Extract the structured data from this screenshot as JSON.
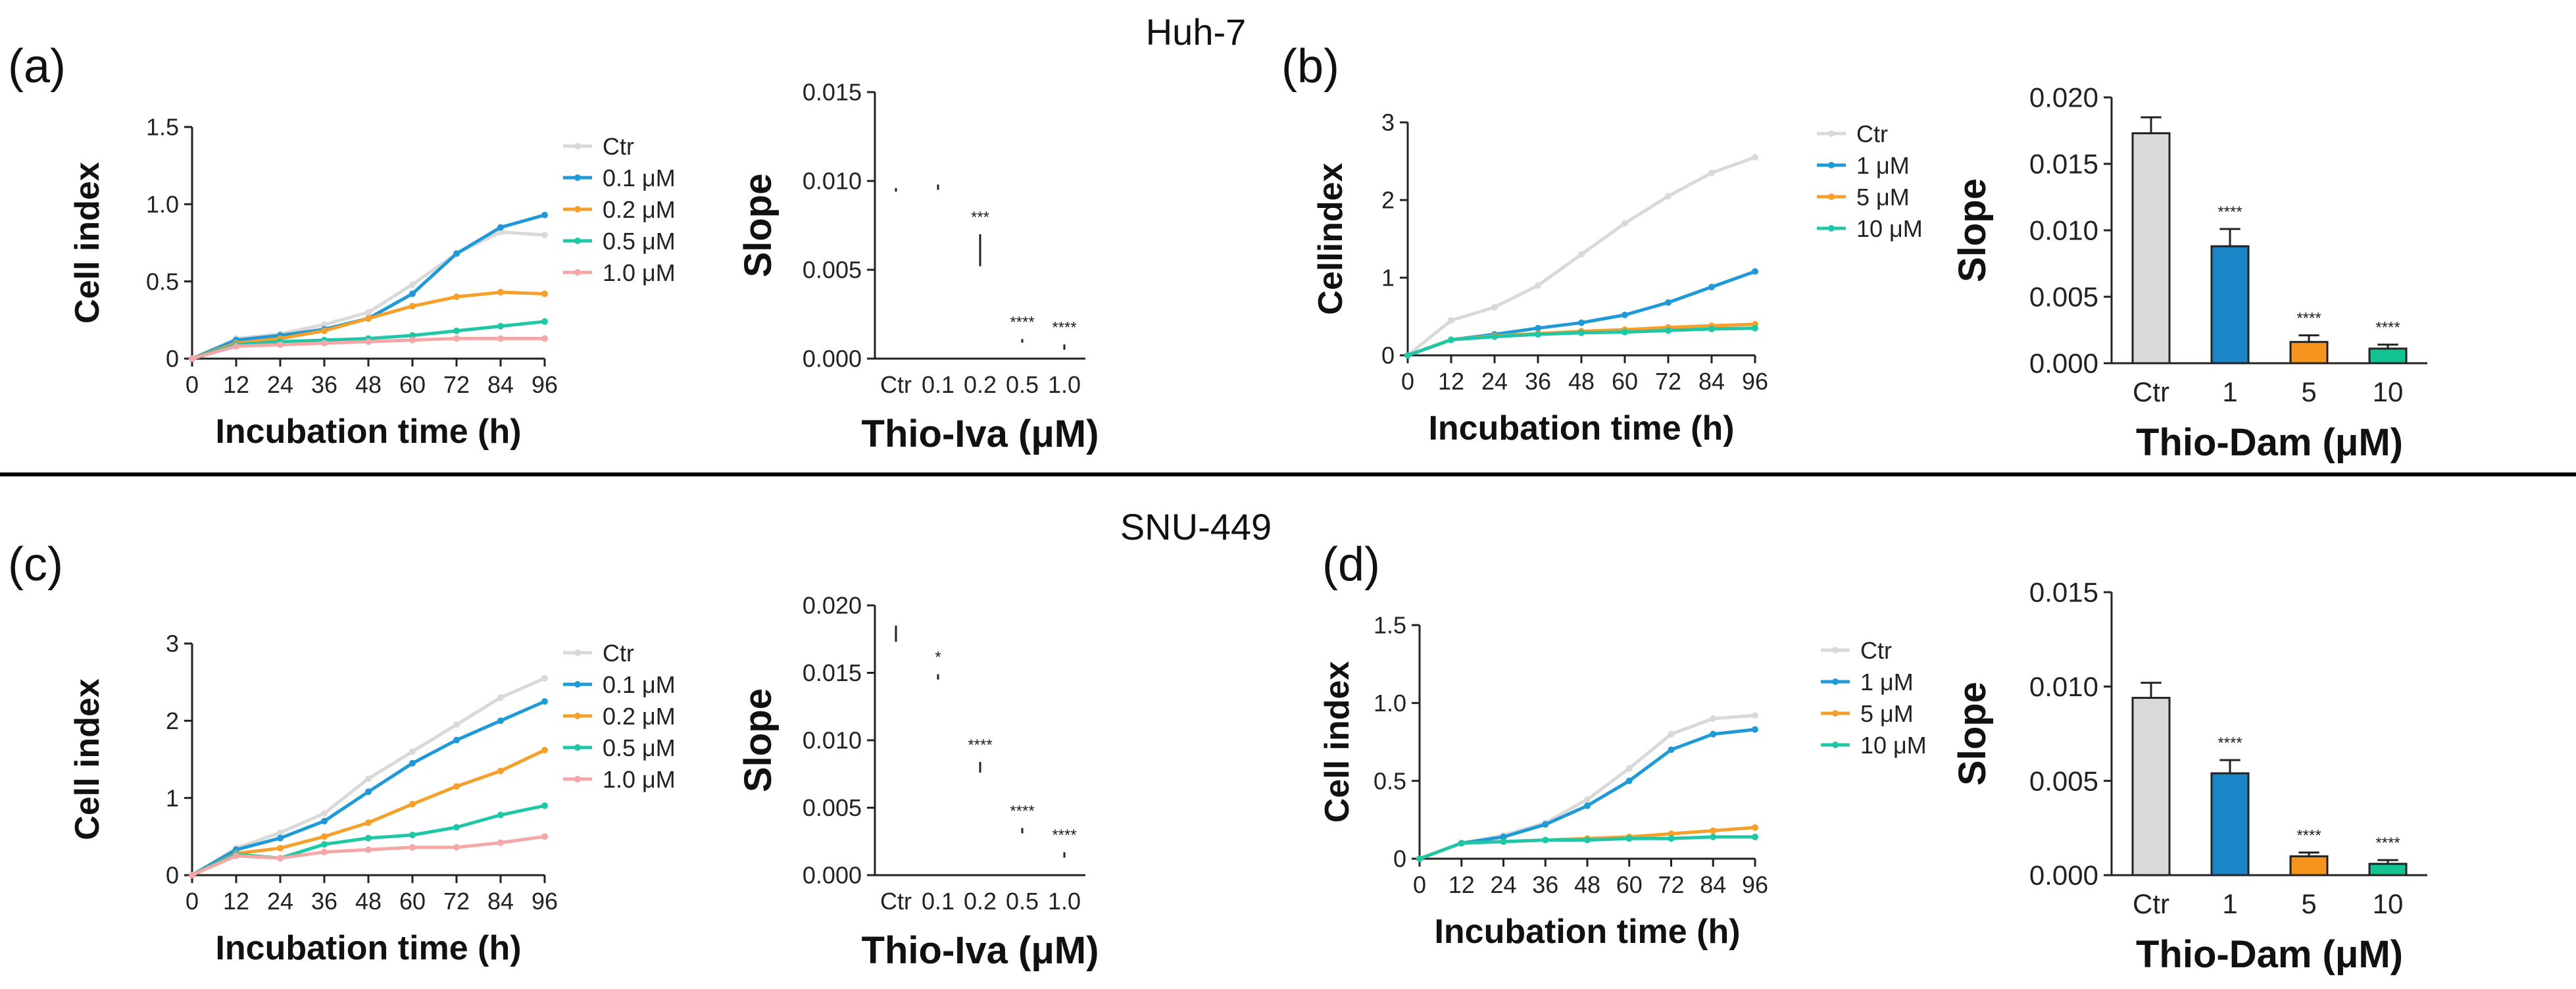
{
  "figure": {
    "title_top": "Huh-7",
    "title_bottom": "SNU-449",
    "panel_labels": [
      "(a)",
      "(b)",
      "(c)",
      "(d)"
    ]
  },
  "chart_data": [
    {
      "id": "a-line",
      "type": "line",
      "panel": "(a)",
      "xlabel": "Incubation time (h)",
      "ylabel": "Cell index",
      "xlim": [
        0,
        96
      ],
      "ylim": [
        0,
        1.5
      ],
      "xticks": [
        0,
        12,
        24,
        36,
        48,
        60,
        72,
        84,
        96
      ],
      "yticks": [
        0,
        0.5,
        1.0,
        1.5
      ],
      "ytick_labels": [
        "0",
        "0.5",
        "1.0",
        "1.5"
      ],
      "x": [
        0,
        12,
        24,
        36,
        48,
        60,
        72,
        84,
        96
      ],
      "series": [
        {
          "name": "Ctr",
          "color": "#d9d9d9",
          "values": [
            0,
            0.13,
            0.16,
            0.22,
            0.3,
            0.48,
            0.68,
            0.82,
            0.8
          ]
        },
        {
          "name": "0.1 μM",
          "color": "#1f9ad6",
          "values": [
            0,
            0.12,
            0.15,
            0.19,
            0.26,
            0.42,
            0.68,
            0.85,
            0.93
          ]
        },
        {
          "name": "0.2 μM",
          "color": "#f5a02a",
          "values": [
            0,
            0.1,
            0.13,
            0.18,
            0.26,
            0.34,
            0.4,
            0.43,
            0.42
          ]
        },
        {
          "name": "0.5 μM",
          "color": "#1fc7a6",
          "values": [
            0,
            0.09,
            0.11,
            0.12,
            0.13,
            0.15,
            0.18,
            0.21,
            0.24
          ]
        },
        {
          "name": "1.0 μM",
          "color": "#f5a6a6",
          "values": [
            0,
            0.08,
            0.09,
            0.1,
            0.11,
            0.12,
            0.13,
            0.13,
            0.13
          ]
        }
      ]
    },
    {
      "id": "a-bar",
      "type": "bar",
      "panel": "(a)",
      "xlabel": "Thio-Iva (μM)",
      "ylabel": "Slope",
      "ylim": [
        0,
        0.015
      ],
      "yticks": [
        0,
        0.005,
        0.01,
        0.015
      ],
      "ytick_labels": [
        "0.000",
        "0.005",
        "0.010",
        "0.015"
      ],
      "categories": [
        "Ctr",
        "0.1",
        "0.2",
        "0.5",
        "1.0"
      ],
      "values": [
        0.0094,
        0.0095,
        0.0052,
        0.0009,
        0.0005
      ],
      "errors": [
        0.0002,
        0.0003,
        0.0018,
        0.0002,
        0.0003
      ],
      "colors": [
        "#d9d9d9",
        "#1a86c8",
        "#f7941d",
        "#14c392",
        "#f0938f"
      ],
      "significance": [
        "",
        "",
        "***",
        "****",
        "****"
      ]
    },
    {
      "id": "b-line",
      "type": "line",
      "panel": "(b)",
      "xlabel": "Incubation time (h)",
      "ylabel": "Cellindex",
      "xlim": [
        0,
        96
      ],
      "ylim": [
        0,
        3
      ],
      "xticks": [
        0,
        12,
        24,
        36,
        48,
        60,
        72,
        84,
        96
      ],
      "yticks": [
        0,
        1,
        2,
        3
      ],
      "ytick_labels": [
        "0",
        "1",
        "2",
        "3"
      ],
      "x": [
        0,
        12,
        24,
        36,
        48,
        60,
        72,
        84,
        96
      ],
      "series": [
        {
          "name": "Ctr",
          "color": "#d9d9d9",
          "values": [
            0,
            0.45,
            0.62,
            0.9,
            1.3,
            1.7,
            2.05,
            2.35,
            2.55
          ]
        },
        {
          "name": "1 μM",
          "color": "#1f9ad6",
          "values": [
            0,
            0.2,
            0.27,
            0.35,
            0.42,
            0.52,
            0.68,
            0.88,
            1.08
          ]
        },
        {
          "name": "5 μM",
          "color": "#f5a02a",
          "values": [
            0,
            0.2,
            0.25,
            0.28,
            0.31,
            0.33,
            0.36,
            0.38,
            0.4
          ]
        },
        {
          "name": "10 μM",
          "color": "#1fc7a6",
          "values": [
            0,
            0.2,
            0.24,
            0.27,
            0.29,
            0.3,
            0.32,
            0.34,
            0.35
          ]
        }
      ]
    },
    {
      "id": "b-bar",
      "type": "bar",
      "panel": "(b)",
      "xlabel": "Thio-Dam (μM)",
      "ylabel": "Slope",
      "ylim": [
        0,
        0.02
      ],
      "yticks": [
        0,
        0.005,
        0.01,
        0.015,
        0.02
      ],
      "ytick_labels": [
        "0.000",
        "0.005",
        "0.010",
        "0.015",
        "0.020"
      ],
      "categories": [
        "Ctr",
        "1",
        "5",
        "10"
      ],
      "values": [
        0.0173,
        0.0088,
        0.0016,
        0.0011
      ],
      "errors": [
        0.0012,
        0.0013,
        0.0005,
        0.0003
      ],
      "colors": [
        "#d9d9d9",
        "#1a86c8",
        "#f7941d",
        "#14c392"
      ],
      "significance": [
        "",
        "****",
        "****",
        "****"
      ]
    },
    {
      "id": "c-line",
      "type": "line",
      "panel": "(c)",
      "xlabel": "Incubation time (h)",
      "ylabel": "Cell index",
      "xlim": [
        0,
        96
      ],
      "ylim": [
        0,
        3
      ],
      "xticks": [
        0,
        12,
        24,
        36,
        48,
        60,
        72,
        84,
        96
      ],
      "yticks": [
        0,
        1,
        2,
        3
      ],
      "ytick_labels": [
        "0",
        "1",
        "2",
        "3"
      ],
      "x": [
        0,
        12,
        24,
        36,
        48,
        60,
        72,
        84,
        96
      ],
      "series": [
        {
          "name": "Ctr",
          "color": "#d9d9d9",
          "values": [
            0,
            0.35,
            0.55,
            0.8,
            1.25,
            1.6,
            1.95,
            2.3,
            2.55
          ]
        },
        {
          "name": "0.1 μM",
          "color": "#1f9ad6",
          "values": [
            0,
            0.33,
            0.48,
            0.7,
            1.08,
            1.45,
            1.75,
            2.0,
            2.25
          ]
        },
        {
          "name": "0.2 μM",
          "color": "#f5a02a",
          "values": [
            0,
            0.28,
            0.35,
            0.5,
            0.68,
            0.92,
            1.15,
            1.35,
            1.62
          ]
        },
        {
          "name": "0.5 μM",
          "color": "#1fc7a6",
          "values": [
            0,
            0.27,
            0.22,
            0.4,
            0.48,
            0.52,
            0.62,
            0.78,
            0.9
          ]
        },
        {
          "name": "1.0 μM",
          "color": "#f5a6a6",
          "values": [
            0,
            0.25,
            0.22,
            0.3,
            0.33,
            0.36,
            0.36,
            0.42,
            0.5
          ]
        }
      ]
    },
    {
      "id": "c-bar",
      "type": "bar",
      "panel": "(c)",
      "xlabel": "Thio-Iva (μM)",
      "ylabel": "Slope",
      "ylim": [
        0,
        0.02
      ],
      "yticks": [
        0,
        0.005,
        0.01,
        0.015,
        0.02
      ],
      "ytick_labels": [
        "0.000",
        "0.005",
        "0.010",
        "0.015",
        "0.020"
      ],
      "categories": [
        "Ctr",
        "0.1",
        "0.2",
        "0.5",
        "1.0"
      ],
      "values": [
        0.0173,
        0.0145,
        0.0076,
        0.0031,
        0.0013
      ],
      "errors": [
        0.0012,
        0.0004,
        0.0008,
        0.0004,
        0.0004
      ],
      "colors": [
        "#d9d9d9",
        "#1a86c8",
        "#f7941d",
        "#14c392",
        "#f0938f"
      ],
      "significance": [
        "",
        "*",
        "****",
        "****",
        "****"
      ]
    },
    {
      "id": "d-line",
      "type": "line",
      "panel": "(d)",
      "xlabel": "Incubation time (h)",
      "ylabel": "Cell index",
      "xlim": [
        0,
        96
      ],
      "ylim": [
        0,
        1.5
      ],
      "xticks": [
        0,
        12,
        24,
        36,
        48,
        60,
        72,
        84,
        96
      ],
      "yticks": [
        0,
        0.5,
        1.0,
        1.5
      ],
      "ytick_labels": [
        "0",
        "0.5",
        "1.0",
        "1.5"
      ],
      "x": [
        0,
        12,
        24,
        36,
        48,
        60,
        72,
        84,
        96
      ],
      "series": [
        {
          "name": "Ctr",
          "color": "#d9d9d9",
          "values": [
            0,
            0.1,
            0.15,
            0.23,
            0.38,
            0.58,
            0.8,
            0.9,
            0.92
          ]
        },
        {
          "name": "1 μM",
          "color": "#1f9ad6",
          "values": [
            0,
            0.1,
            0.14,
            0.22,
            0.34,
            0.5,
            0.7,
            0.8,
            0.83
          ]
        },
        {
          "name": "5 μM",
          "color": "#f5a02a",
          "values": [
            0,
            0.1,
            0.11,
            0.12,
            0.13,
            0.14,
            0.16,
            0.18,
            0.2
          ]
        },
        {
          "name": "10 μM",
          "color": "#1fc7a6",
          "values": [
            0,
            0.1,
            0.11,
            0.12,
            0.12,
            0.13,
            0.13,
            0.14,
            0.14
          ]
        }
      ]
    },
    {
      "id": "d-bar",
      "type": "bar",
      "panel": "(d)",
      "xlabel": "Thio-Dam (μM)",
      "ylabel": "Slope",
      "ylim": [
        0,
        0.015
      ],
      "yticks": [
        0,
        0.005,
        0.01,
        0.015
      ],
      "ytick_labels": [
        "0.000",
        "0.005",
        "0.010",
        "0.015"
      ],
      "categories": [
        "Ctr",
        "1",
        "5",
        "10"
      ],
      "values": [
        0.0094,
        0.0054,
        0.001,
        0.0006
      ],
      "errors": [
        0.0008,
        0.0007,
        0.0002,
        0.0002
      ],
      "colors": [
        "#d9d9d9",
        "#1a86c8",
        "#f7941d",
        "#14c392"
      ],
      "significance": [
        "",
        "****",
        "****",
        "****"
      ]
    }
  ]
}
